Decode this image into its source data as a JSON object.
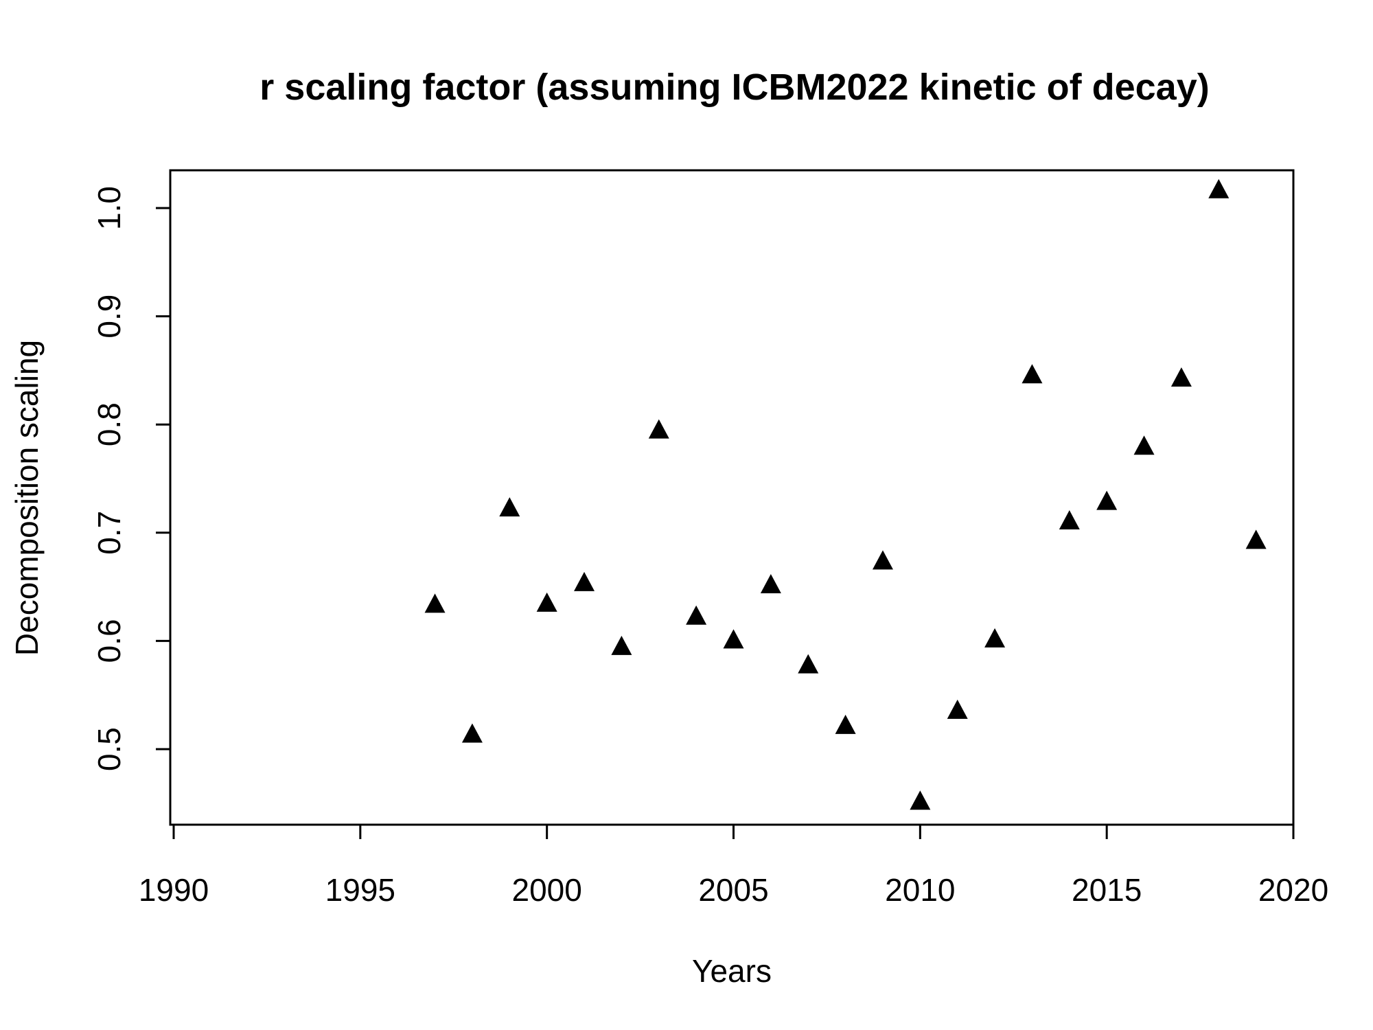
{
  "chart_data": {
    "type": "scatter",
    "title": "r scaling factor (assuming ICBM2022 kinetic of decay)",
    "xlabel": "Years",
    "ylabel": "Decomposition scaling",
    "xlim": [
      1990,
      2020
    ],
    "ylim": [
      0.45,
      1.02
    ],
    "x_ticks": [
      1990,
      1995,
      2000,
      2005,
      2010,
      2015,
      2020
    ],
    "y_ticks": [
      0.5,
      0.6,
      0.7,
      0.8,
      0.9,
      1.0
    ],
    "y_tick_labels": [
      "0.5",
      "0.6",
      "0.7",
      "0.8",
      "0.9",
      "1.0"
    ],
    "marker": "filled-triangle",
    "marker_color": "#000000",
    "grid": false,
    "legend": "none",
    "series": [
      {
        "x": [
          1997,
          1998,
          1999,
          2000,
          2001,
          2002,
          2003,
          2004,
          2005,
          2006,
          2007,
          2008,
          2009,
          2010,
          2011,
          2012,
          2013,
          2014,
          2015,
          2016,
          2017,
          2018,
          2019
        ],
        "y": [
          0.633,
          0.513,
          0.722,
          0.634,
          0.653,
          0.594,
          0.794,
          0.622,
          0.6,
          0.651,
          0.577,
          0.521,
          0.673,
          0.451,
          0.535,
          0.601,
          0.845,
          0.71,
          0.728,
          0.779,
          0.842,
          1.016,
          0.692
        ]
      }
    ]
  }
}
